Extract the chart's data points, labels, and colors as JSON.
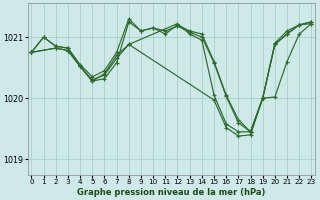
{
  "background_color": "#cfe9e9",
  "grid_color": "#a8d0c8",
  "line_color": "#2d6a2d",
  "marker_color": "#2d6a2d",
  "xlabel": "Graphe pression niveau de la mer (hPa)",
  "ylim": [
    1018.75,
    1021.55
  ],
  "xlim": [
    -0.3,
    23.3
  ],
  "yticks": [
    1019,
    1020,
    1021
  ],
  "xticks": [
    0,
    1,
    2,
    3,
    4,
    5,
    6,
    7,
    8,
    9,
    10,
    11,
    12,
    13,
    14,
    15,
    16,
    17,
    18,
    19,
    20,
    21,
    22,
    23
  ],
  "series": [
    {
      "x": [
        0,
        1,
        2,
        3,
        4,
        5,
        6,
        7,
        8,
        9,
        10,
        11,
        12,
        13,
        14,
        15,
        16,
        17,
        18,
        19,
        20,
        21,
        22,
        23
      ],
      "y": [
        1020.75,
        1021.0,
        1020.85,
        1020.82,
        1020.55,
        1020.35,
        1020.45,
        1020.75,
        1021.3,
        1021.1,
        1021.15,
        1021.05,
        1021.2,
        1021.1,
        1021.05,
        1020.6,
        1020.05,
        1019.65,
        1019.45,
        1020.0,
        1020.9,
        1021.1,
        1021.2,
        1021.25
      ]
    },
    {
      "x": [
        0,
        2,
        3,
        4,
        5,
        6,
        7,
        8,
        12,
        13,
        14,
        15,
        16,
        17,
        18,
        19,
        20,
        21,
        22,
        23
      ],
      "y": [
        1020.75,
        1020.82,
        1020.78,
        1020.52,
        1020.3,
        1020.38,
        1020.65,
        1020.88,
        1021.22,
        1021.05,
        1020.95,
        1020.05,
        1019.58,
        1019.45,
        1019.45,
        1020.0,
        1020.88,
        1021.05,
        1021.2,
        1021.22
      ]
    },
    {
      "x": [
        0,
        2,
        3,
        4,
        5,
        6,
        7,
        8,
        9,
        10,
        11,
        12,
        13,
        14,
        15,
        16,
        17,
        18,
        19,
        20,
        21,
        22,
        23
      ],
      "y": [
        1020.75,
        1020.82,
        1020.78,
        1020.52,
        1020.28,
        1020.32,
        1020.58,
        1021.25,
        1021.1,
        1021.15,
        1021.1,
        1021.18,
        1021.08,
        1021.0,
        1020.58,
        1020.03,
        1019.6,
        1019.45,
        1020.0,
        1020.88,
        1021.05,
        1021.2,
        1021.25
      ]
    },
    {
      "x": [
        0,
        1,
        2,
        3,
        4,
        5,
        6,
        7,
        8,
        15,
        16,
        17,
        18,
        19,
        20,
        21,
        22,
        23
      ],
      "y": [
        1020.75,
        1021.0,
        1020.85,
        1020.82,
        1020.52,
        1020.28,
        1020.4,
        1020.7,
        1020.88,
        1019.97,
        1019.52,
        1019.38,
        1019.4,
        1020.0,
        1020.02,
        1020.6,
        1021.05,
        1021.22
      ]
    }
  ]
}
